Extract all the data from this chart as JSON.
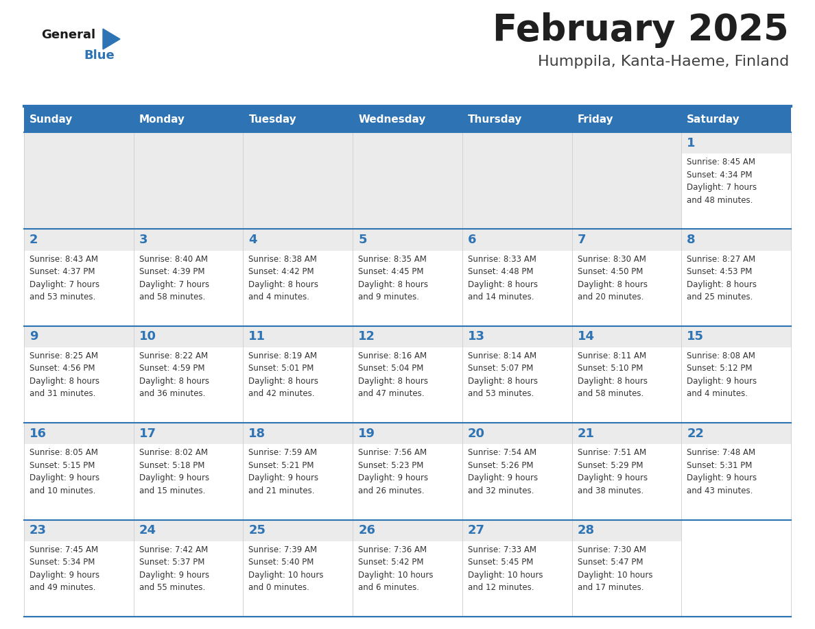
{
  "title": "February 2025",
  "subtitle": "Humppila, Kanta-Haeme, Finland",
  "header_bg": "#2E74B5",
  "header_text_color": "#FFFFFF",
  "cell_bg_light": "#EBEBEB",
  "cell_bg_white": "#FFFFFF",
  "day_num_bg": "#EBEBEB",
  "border_color": "#2E74B5",
  "day_headers": [
    "Sunday",
    "Monday",
    "Tuesday",
    "Wednesday",
    "Thursday",
    "Friday",
    "Saturday"
  ],
  "title_color": "#1F1F1F",
  "subtitle_color": "#404040",
  "day_number_color": "#2E74B5",
  "cell_text_color": "#333333",
  "logo_general_color": "#1A1A1A",
  "logo_blue_color": "#2E74B5",
  "weeks": [
    [
      {
        "day": "",
        "info": ""
      },
      {
        "day": "",
        "info": ""
      },
      {
        "day": "",
        "info": ""
      },
      {
        "day": "",
        "info": ""
      },
      {
        "day": "",
        "info": ""
      },
      {
        "day": "",
        "info": ""
      },
      {
        "day": "1",
        "info": "Sunrise: 8:45 AM\nSunset: 4:34 PM\nDaylight: 7 hours\nand 48 minutes."
      }
    ],
    [
      {
        "day": "2",
        "info": "Sunrise: 8:43 AM\nSunset: 4:37 PM\nDaylight: 7 hours\nand 53 minutes."
      },
      {
        "day": "3",
        "info": "Sunrise: 8:40 AM\nSunset: 4:39 PM\nDaylight: 7 hours\nand 58 minutes."
      },
      {
        "day": "4",
        "info": "Sunrise: 8:38 AM\nSunset: 4:42 PM\nDaylight: 8 hours\nand 4 minutes."
      },
      {
        "day": "5",
        "info": "Sunrise: 8:35 AM\nSunset: 4:45 PM\nDaylight: 8 hours\nand 9 minutes."
      },
      {
        "day": "6",
        "info": "Sunrise: 8:33 AM\nSunset: 4:48 PM\nDaylight: 8 hours\nand 14 minutes."
      },
      {
        "day": "7",
        "info": "Sunrise: 8:30 AM\nSunset: 4:50 PM\nDaylight: 8 hours\nand 20 minutes."
      },
      {
        "day": "8",
        "info": "Sunrise: 8:27 AM\nSunset: 4:53 PM\nDaylight: 8 hours\nand 25 minutes."
      }
    ],
    [
      {
        "day": "9",
        "info": "Sunrise: 8:25 AM\nSunset: 4:56 PM\nDaylight: 8 hours\nand 31 minutes."
      },
      {
        "day": "10",
        "info": "Sunrise: 8:22 AM\nSunset: 4:59 PM\nDaylight: 8 hours\nand 36 minutes."
      },
      {
        "day": "11",
        "info": "Sunrise: 8:19 AM\nSunset: 5:01 PM\nDaylight: 8 hours\nand 42 minutes."
      },
      {
        "day": "12",
        "info": "Sunrise: 8:16 AM\nSunset: 5:04 PM\nDaylight: 8 hours\nand 47 minutes."
      },
      {
        "day": "13",
        "info": "Sunrise: 8:14 AM\nSunset: 5:07 PM\nDaylight: 8 hours\nand 53 minutes."
      },
      {
        "day": "14",
        "info": "Sunrise: 8:11 AM\nSunset: 5:10 PM\nDaylight: 8 hours\nand 58 minutes."
      },
      {
        "day": "15",
        "info": "Sunrise: 8:08 AM\nSunset: 5:12 PM\nDaylight: 9 hours\nand 4 minutes."
      }
    ],
    [
      {
        "day": "16",
        "info": "Sunrise: 8:05 AM\nSunset: 5:15 PM\nDaylight: 9 hours\nand 10 minutes."
      },
      {
        "day": "17",
        "info": "Sunrise: 8:02 AM\nSunset: 5:18 PM\nDaylight: 9 hours\nand 15 minutes."
      },
      {
        "day": "18",
        "info": "Sunrise: 7:59 AM\nSunset: 5:21 PM\nDaylight: 9 hours\nand 21 minutes."
      },
      {
        "day": "19",
        "info": "Sunrise: 7:56 AM\nSunset: 5:23 PM\nDaylight: 9 hours\nand 26 minutes."
      },
      {
        "day": "20",
        "info": "Sunrise: 7:54 AM\nSunset: 5:26 PM\nDaylight: 9 hours\nand 32 minutes."
      },
      {
        "day": "21",
        "info": "Sunrise: 7:51 AM\nSunset: 5:29 PM\nDaylight: 9 hours\nand 38 minutes."
      },
      {
        "day": "22",
        "info": "Sunrise: 7:48 AM\nSunset: 5:31 PM\nDaylight: 9 hours\nand 43 minutes."
      }
    ],
    [
      {
        "day": "23",
        "info": "Sunrise: 7:45 AM\nSunset: 5:34 PM\nDaylight: 9 hours\nand 49 minutes."
      },
      {
        "day": "24",
        "info": "Sunrise: 7:42 AM\nSunset: 5:37 PM\nDaylight: 9 hours\nand 55 minutes."
      },
      {
        "day": "25",
        "info": "Sunrise: 7:39 AM\nSunset: 5:40 PM\nDaylight: 10 hours\nand 0 minutes."
      },
      {
        "day": "26",
        "info": "Sunrise: 7:36 AM\nSunset: 5:42 PM\nDaylight: 10 hours\nand 6 minutes."
      },
      {
        "day": "27",
        "info": "Sunrise: 7:33 AM\nSunset: 5:45 PM\nDaylight: 10 hours\nand 12 minutes."
      },
      {
        "day": "28",
        "info": "Sunrise: 7:30 AM\nSunset: 5:47 PM\nDaylight: 10 hours\nand 17 minutes."
      },
      {
        "day": "",
        "info": ""
      }
    ]
  ]
}
